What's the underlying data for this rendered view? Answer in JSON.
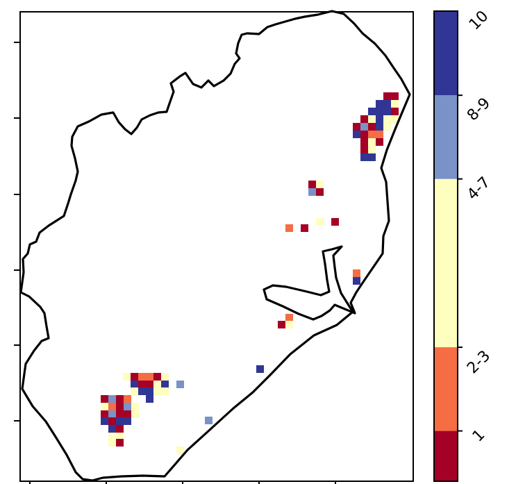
{
  "map": {
    "has_region_outline": true,
    "color_mapping": {
      "1": "#a50026",
      "2": "#f46d43",
      "3": "#fefebe",
      "4": "#7a92c7",
      "5": "#313695"
    },
    "cells": [
      {
        "col": 0,
        "row": 0,
        "v": 1
      },
      {
        "col": 1,
        "row": 0,
        "v": 5
      },
      {
        "col": 2,
        "row": 0,
        "v": 3
      }
    ]
  },
  "colorbar": {
    "segments": [
      {
        "label": "1",
        "color": "#a50026",
        "from": 0.0,
        "to": 0.107
      },
      {
        "label": "2-3",
        "color": "#f46d43",
        "from": 0.107,
        "to": 0.285
      },
      {
        "label": "4-7",
        "color": "#fefebe",
        "from": 0.285,
        "to": 0.643
      },
      {
        "label": "8-9",
        "color": "#7a92c7",
        "from": 0.643,
        "to": 0.821
      },
      {
        "label": "10",
        "color": "#313695",
        "from": 0.821,
        "to": 1.0
      }
    ]
  }
}
